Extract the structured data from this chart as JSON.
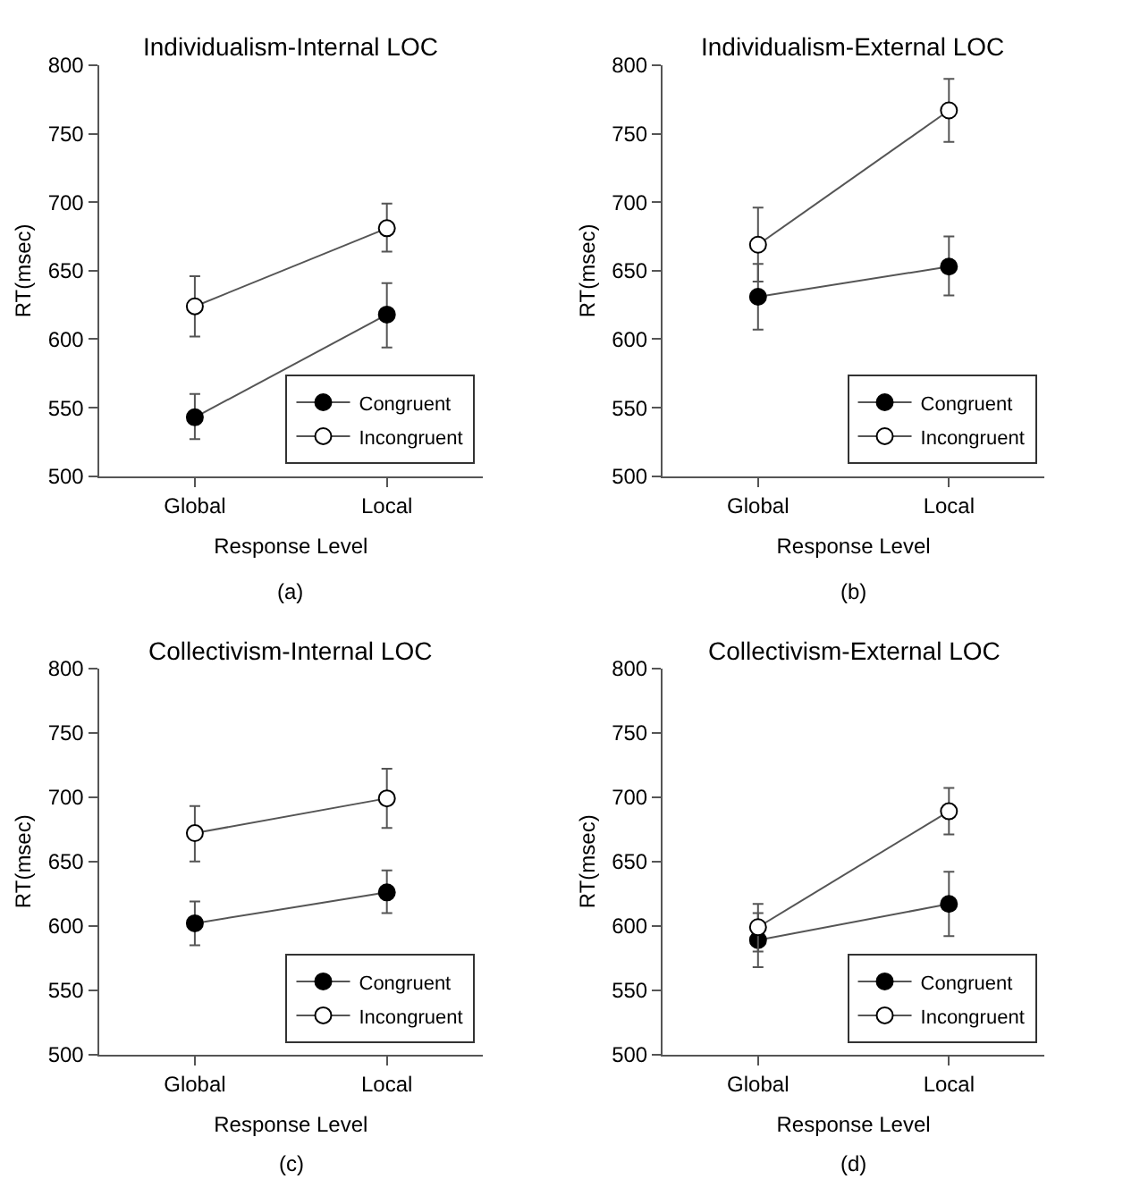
{
  "chart_data": [
    {
      "type": "line",
      "title": "Individualism-Internal LOC",
      "xlabel": "Response Level",
      "ylabel": "RT(msec)",
      "annotations": [
        "(a)"
      ],
      "categories": [
        "Global",
        "Local"
      ],
      "ylim": [
        500,
        800
      ],
      "yticks": [
        500,
        550,
        600,
        650,
        700,
        750,
        800
      ],
      "marker": "circle",
      "legend": "bottom right",
      "series": [
        {
          "name": "Congruent",
          "color": "#000000",
          "values": [
            543,
            618
          ],
          "errors": [
            [
              527,
              560
            ],
            [
              594,
              641
            ]
          ]
        },
        {
          "name": "Incongruent",
          "color": "#ffffff",
          "values": [
            624,
            681
          ],
          "errors": [
            [
              602,
              646
            ],
            [
              664,
              699
            ]
          ]
        }
      ]
    },
    {
      "type": "line",
      "title": "Individualism-External LOC",
      "xlabel": "Response Level",
      "ylabel": "RT(msec)",
      "annotations": [
        "(b)"
      ],
      "categories": [
        "Global",
        "Local"
      ],
      "ylim": [
        500,
        800
      ],
      "yticks": [
        500,
        550,
        600,
        650,
        700,
        750,
        800
      ],
      "marker": "circle",
      "legend": "bottom right",
      "series": [
        {
          "name": "Congruent",
          "color": "#000000",
          "values": [
            631,
            653
          ],
          "errors": [
            [
              607,
              655
            ],
            [
              632,
              675
            ]
          ]
        },
        {
          "name": "Incongruent",
          "color": "#ffffff",
          "values": [
            669,
            767
          ],
          "errors": [
            [
              642,
              696
            ],
            [
              744,
              790
            ]
          ]
        }
      ]
    },
    {
      "type": "line",
      "title": "Collectivism-Internal LOC",
      "xlabel": "Response Level",
      "ylabel": "RT(msec)",
      "annotations": [
        "(c)"
      ],
      "categories": [
        "Global",
        "Local"
      ],
      "ylim": [
        500,
        800
      ],
      "yticks": [
        500,
        550,
        600,
        650,
        700,
        750,
        800
      ],
      "marker": "circle",
      "legend": "bottom right",
      "series": [
        {
          "name": "Congruent",
          "color": "#000000",
          "values": [
            602,
            626
          ],
          "errors": [
            [
              585,
              619
            ],
            [
              610,
              643
            ]
          ]
        },
        {
          "name": "Incongruent",
          "color": "#ffffff",
          "values": [
            672,
            699
          ],
          "errors": [
            [
              650,
              693
            ],
            [
              676,
              722
            ]
          ]
        }
      ]
    },
    {
      "type": "line",
      "title": "Collectivism-External LOC",
      "xlabel": "Response Level",
      "ylabel": "RT(msec)",
      "annotations": [
        "(d)"
      ],
      "categories": [
        "Global",
        "Local"
      ],
      "ylim": [
        500,
        800
      ],
      "yticks": [
        500,
        550,
        600,
        650,
        700,
        750,
        800
      ],
      "marker": "circle",
      "legend": "bottom right",
      "series": [
        {
          "name": "Congruent",
          "color": "#000000",
          "values": [
            589,
            617
          ],
          "errors": [
            [
              568,
              610
            ],
            [
              592,
              642
            ]
          ]
        },
        {
          "name": "Incongruent",
          "color": "#ffffff",
          "values": [
            599,
            689
          ],
          "errors": [
            [
              580,
              617
            ],
            [
              671,
              707
            ]
          ]
        }
      ]
    }
  ]
}
